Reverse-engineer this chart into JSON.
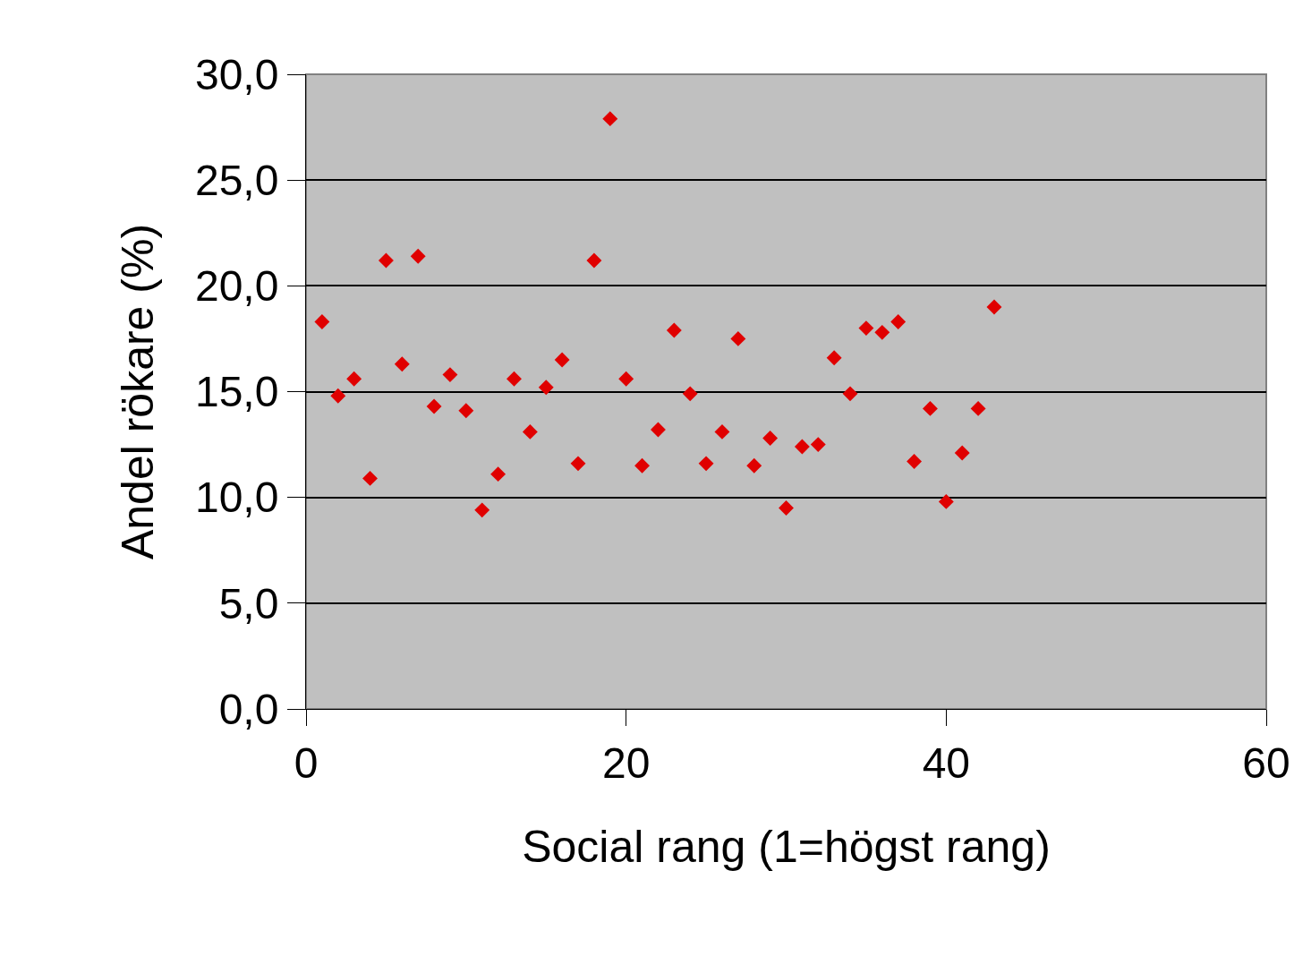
{
  "chart_data": {
    "type": "scatter",
    "xlabel": "Social rang (1=högst rang)",
    "ylabel": "Andel rökare (%)",
    "x": [
      1,
      2,
      3,
      4,
      5,
      6,
      7,
      8,
      9,
      10,
      11,
      12,
      13,
      14,
      15,
      16,
      17,
      18,
      19,
      20,
      21,
      22,
      23,
      24,
      25,
      26,
      27,
      28,
      29,
      30,
      31,
      32,
      33,
      34,
      35,
      36,
      37,
      38,
      39,
      40,
      41,
      42,
      43
    ],
    "values": [
      18.3,
      14.8,
      15.6,
      10.9,
      21.2,
      16.3,
      21.4,
      14.3,
      15.8,
      14.1,
      9.4,
      11.1,
      15.6,
      13.1,
      15.2,
      16.5,
      11.6,
      21.2,
      27.9,
      15.6,
      11.5,
      13.2,
      17.9,
      14.9,
      11.6,
      13.1,
      17.5,
      11.5,
      12.8,
      9.5,
      12.4,
      12.5,
      16.6,
      14.9,
      18.0,
      17.8,
      18.3,
      11.7,
      14.2,
      9.8,
      12.1,
      14.2,
      19.0
    ],
    "color": "#e00000",
    "marker": "diamond",
    "xlim": [
      0,
      60
    ],
    "xticks": [
      0,
      20,
      40,
      60
    ],
    "ylim": [
      0,
      30
    ],
    "yticks": [
      {
        "value": 0,
        "label": "0,0"
      },
      {
        "value": 5,
        "label": "5,0"
      },
      {
        "value": 10,
        "label": "10,0"
      },
      {
        "value": 15,
        "label": "15,0"
      },
      {
        "value": 20,
        "label": "20,0"
      },
      {
        "value": 25,
        "label": "25,0"
      },
      {
        "value": 30,
        "label": "30,0"
      }
    ],
    "grid": "y"
  }
}
